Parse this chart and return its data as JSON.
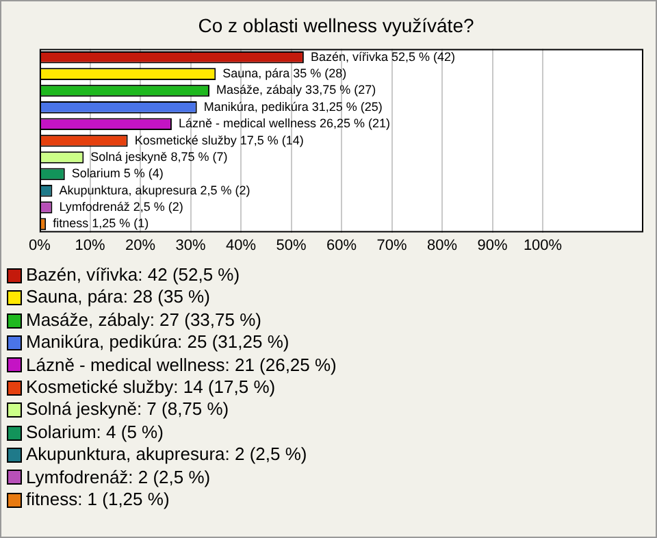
{
  "chart_data": {
    "type": "bar",
    "orientation": "horizontal",
    "title": "Co z oblasti wellness využíváte?",
    "categories": [
      "Bazén, vířivka",
      "Sauna, pára",
      "Masáže, zábaly",
      "Manikúra, pedikúra",
      "Lázně - medical wellness",
      "Kosmetické služby",
      "Solná jeskyně",
      "Solarium",
      "Akupunktura, akupresura",
      "Lymfodrenáž",
      "fitness"
    ],
    "values": [
      52.5,
      35,
      33.75,
      31.25,
      26.25,
      17.5,
      8.75,
      5,
      2.5,
      2.5,
      1.25
    ],
    "colors": [
      "#c41a0c",
      "#ffe800",
      "#1fb81f",
      "#4a74e8",
      "#c414c4",
      "#e5400e",
      "#ccff88",
      "#12945a",
      "#1f7a8a",
      "#b850b8",
      "#e87a10"
    ],
    "value_labels": [
      "52,5 % (42)",
      "35 % (28)",
      "33,75 % (27)",
      "31,25 % (25)",
      "26,25 % (21)",
      "17,5 % (14)",
      "8,75 % (7)",
      "5 % (4)",
      "2,5 % (2)",
      "2,5 % (2)",
      "1,25 % (1)"
    ],
    "xlim": [
      0,
      120
    ],
    "xticks": [
      {
        "value": 0,
        "label": "0%"
      },
      {
        "value": 10,
        "label": "10%"
      },
      {
        "value": 20,
        "label": "20%"
      },
      {
        "value": 30,
        "label": "30%"
      },
      {
        "value": 40,
        "label": "40%"
      },
      {
        "value": 50,
        "label": "50%"
      },
      {
        "value": 60,
        "label": "60%"
      },
      {
        "value": 70,
        "label": "70%"
      },
      {
        "value": 80,
        "label": "80%"
      },
      {
        "value": 90,
        "label": "90%"
      },
      {
        "value": 100,
        "label": "100%"
      }
    ],
    "grid": "x",
    "tick_labels": "x",
    "annotations": [
      "Bazén, vířivka: 42 (52,5 %)",
      "Sauna, pára: 28 (35 %)",
      "Masáže, zábaly: 27 (33,75 %)",
      "Manikúra, pedikúra: 25 (31,25 %)",
      "Lázně - medical wellness: 21 (26,25 %)",
      "Kosmetické služby: 14 (17,5 %)",
      "Solná jeskyně: 7 (8,75 %)",
      "Solarium: 4 (5 %)",
      "Akupunktura, akupresura: 2 (2,5 %)",
      "Lymfodrenáž: 2 (2,5 %)",
      "fitness: 1 (1,25 %)"
    ]
  }
}
